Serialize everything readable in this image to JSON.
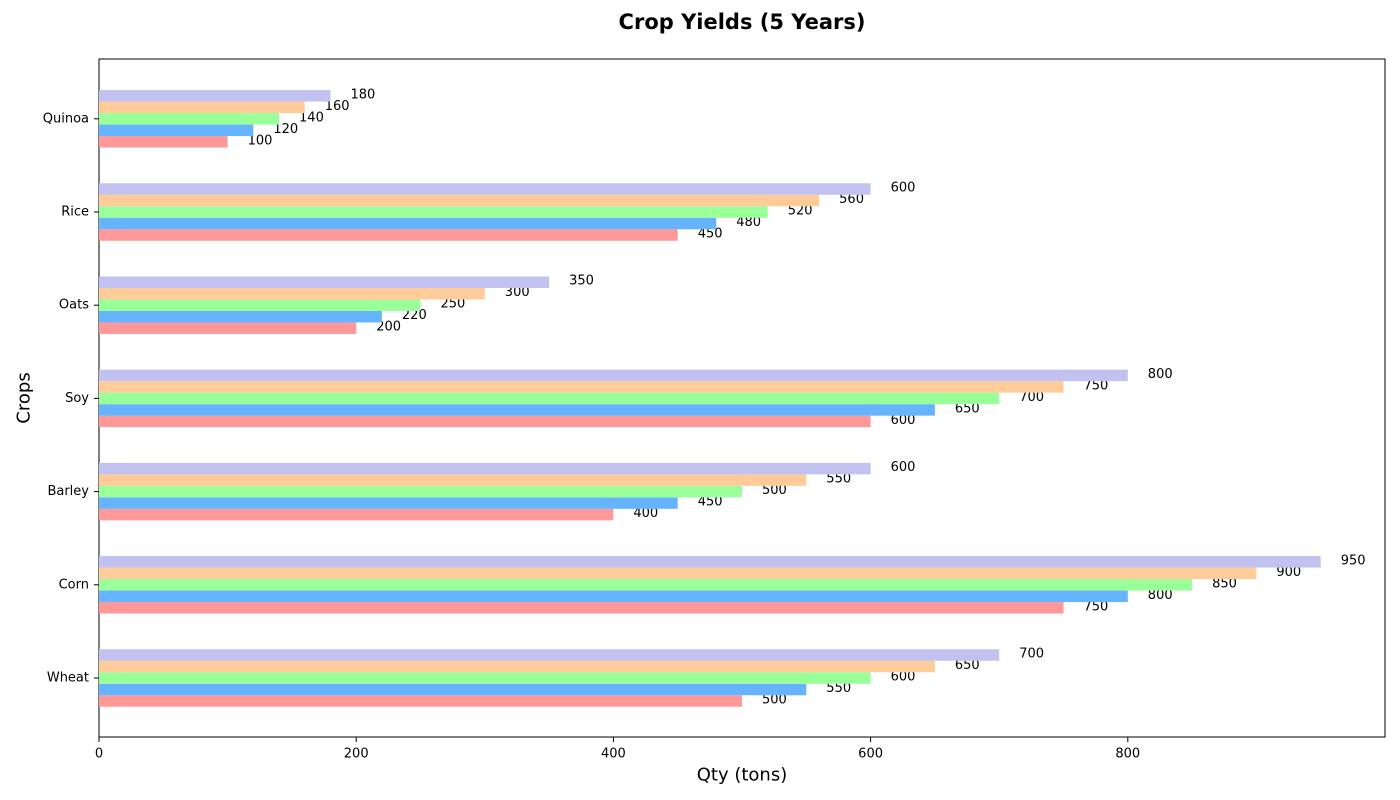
{
  "chart_data": {
    "type": "bar",
    "orientation": "horizontal",
    "title": "Crop Yields (5 Years)",
    "xlabel": "Qty (tons)",
    "ylabel": "Crops",
    "xlim": [
      0,
      1000
    ],
    "xticks": [
      0,
      200,
      400,
      600,
      800
    ],
    "categories": [
      "Wheat",
      "Corn",
      "Barley",
      "Soy",
      "Oats",
      "Rice",
      "Quinoa"
    ],
    "series": [
      {
        "color": "#ff9999",
        "values": [
          500,
          750,
          400,
          600,
          200,
          450,
          100
        ]
      },
      {
        "color": "#66b3ff",
        "values": [
          550,
          800,
          450,
          650,
          220,
          480,
          120
        ]
      },
      {
        "color": "#99ff99",
        "values": [
          600,
          850,
          500,
          700,
          250,
          520,
          140
        ]
      },
      {
        "color": "#ffcc99",
        "values": [
          650,
          900,
          550,
          750,
          300,
          560,
          160
        ]
      },
      {
        "color": "#c2c2f0",
        "values": [
          700,
          950,
          600,
          800,
          350,
          600,
          180
        ]
      }
    ],
    "data_labels": true,
    "grid": false,
    "legend": "none"
  }
}
